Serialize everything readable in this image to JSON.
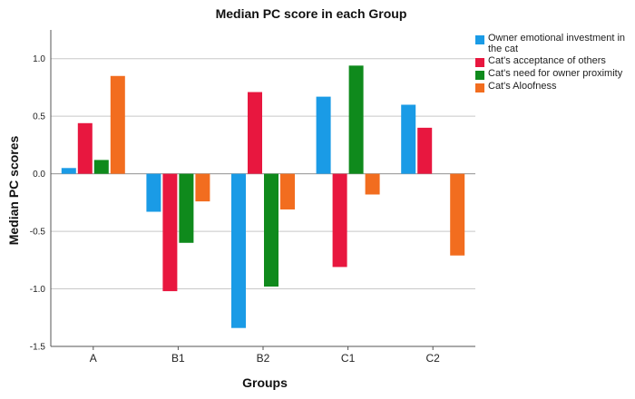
{
  "chart_data": {
    "type": "bar",
    "title": "Median PC score in each Group",
    "xlabel": "Groups",
    "ylabel": "Median PC scores",
    "categories": [
      "A",
      "B1",
      "B2",
      "C1",
      "C2"
    ],
    "ylim": [
      -1.5,
      1.25
    ],
    "yticks": [
      -1.5,
      -1.0,
      -0.5,
      0.0,
      0.5,
      1.0
    ],
    "ytick_labels": [
      "-1.5",
      "-1.0",
      "-0.5",
      "0.0",
      "0.5",
      "1.0"
    ],
    "series": [
      {
        "name": "Owner emotional investment in the cat",
        "color": "#1a9be6",
        "values": [
          0.05,
          -0.33,
          -1.34,
          0.67,
          0.6
        ]
      },
      {
        "name": "Cat's acceptance of others",
        "color": "#e8173f",
        "values": [
          0.44,
          -1.02,
          0.71,
          -0.81,
          0.4
        ]
      },
      {
        "name": "Cat's need for owner proximity",
        "color": "#0f8a1c",
        "values": [
          0.12,
          -0.6,
          -0.98,
          0.94,
          0.0
        ]
      },
      {
        "name": "Cat's Aloofness",
        "color": "#f26d1f",
        "values": [
          0.85,
          -0.24,
          -0.31,
          -0.18,
          -0.71
        ]
      }
    ],
    "legend_position": "top-right",
    "grid": "horizontal"
  }
}
